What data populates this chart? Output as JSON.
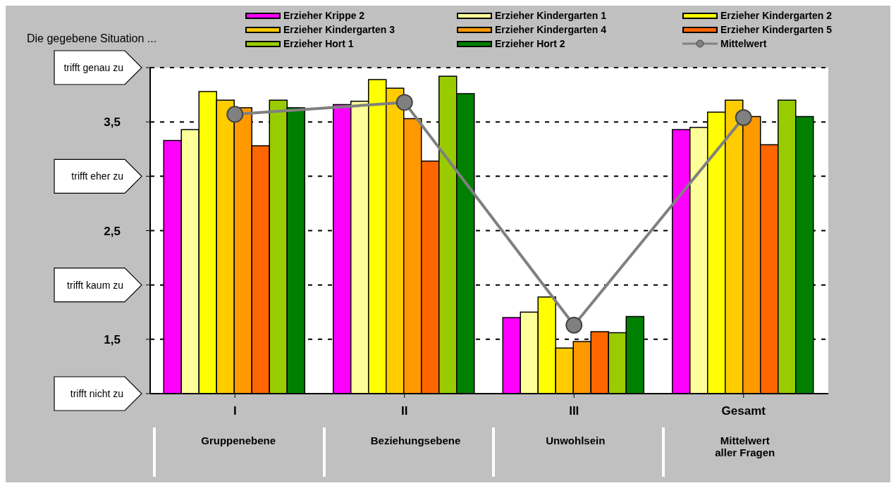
{
  "chart_data": {
    "type": "bar",
    "categories": [
      "I",
      "II",
      "III",
      "Gesamt"
    ],
    "series": [
      {
        "name": "Erzieher Krippe 2",
        "color": "#ff00ff",
        "values": [
          3.33,
          3.66,
          1.7,
          3.43
        ]
      },
      {
        "name": "Erzieher Kindergarten 1",
        "color": "#ffff99",
        "values": [
          3.43,
          3.69,
          1.75,
          3.45
        ]
      },
      {
        "name": "Erzieher Kindergarten 2",
        "color": "#ffff00",
        "values": [
          3.78,
          3.89,
          1.89,
          3.59
        ]
      },
      {
        "name": "Erzieher Kindergarten 3",
        "color": "#ffcc00",
        "values": [
          3.7,
          3.81,
          1.42,
          3.7
        ]
      },
      {
        "name": "Erzieher Kindergarten 4",
        "color": "#ff9900",
        "values": [
          3.63,
          3.53,
          1.48,
          3.55
        ]
      },
      {
        "name": "Erzieher Kindergarten 5",
        "color": "#ff6600",
        "values": [
          3.28,
          3.14,
          1.57,
          3.29
        ]
      },
      {
        "name": "Erzieher Hort 1",
        "color": "#99cc00",
        "values": [
          3.7,
          3.92,
          1.56,
          3.7
        ]
      },
      {
        "name": "Erzieher Hort 2",
        "color": "#008000",
        "values": [
          3.63,
          3.76,
          1.71,
          3.55
        ]
      },
      {
        "name": "Mittelwert",
        "type": "line",
        "color": "#808080",
        "marker": "circle",
        "values": [
          3.57,
          3.68,
          1.63,
          3.54
        ]
      }
    ],
    "ylim": [
      1,
      4
    ],
    "yticks": [
      {
        "value": 1,
        "label": "trifft nicht zu"
      },
      {
        "value": 1.5,
        "label": "1,5"
      },
      {
        "value": 2,
        "label": "trifft kaum zu"
      },
      {
        "value": 2.5,
        "label": "2,5"
      },
      {
        "value": 3,
        "label": "trifft eher zu"
      },
      {
        "value": 3.5,
        "label": "3,5"
      },
      {
        "value": 4,
        "label": "trifft genau zu"
      }
    ],
    "grid": "y",
    "legend": "top",
    "annotations": [
      "Die gegebene Situation ...",
      "Gruppenebene",
      "Beziehungsebene",
      "Unwohlsein",
      "Mittelwert aller Fragen"
    ]
  }
}
